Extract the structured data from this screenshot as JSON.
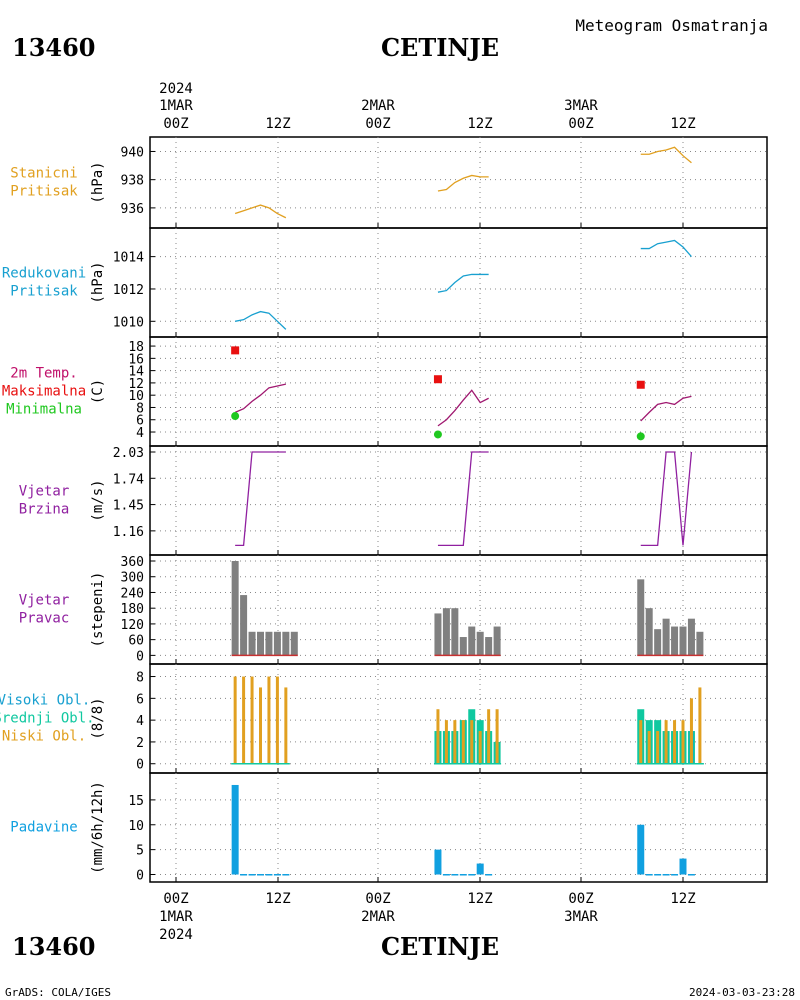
{
  "header": {
    "station_id": "13460",
    "station_name": "CETINJE",
    "product": "Meteogram Osmatranja"
  },
  "footer": {
    "station_id": "13460",
    "station_name": "CETINJE",
    "credit": "GrADS: COLA/IGES",
    "timestamp": "2024-03-03-23:28"
  },
  "time_axis": {
    "year": "2024",
    "days": [
      "1MAR",
      "2MAR",
      "3MAR"
    ],
    "ticks": [
      "00Z",
      "12Z",
      "00Z",
      "12Z",
      "00Z",
      "12Z"
    ]
  },
  "colors": {
    "stanicni": "#e1a020",
    "redukovani": "#18a0d0",
    "max": "#e81010",
    "min": "#20c820",
    "temp_line": "#a01870",
    "vjetar": "#9020a0",
    "bars_gray": "#808080",
    "visoki": "#18a0d0",
    "srednji": "#10c8a0",
    "niski": "#e1a020",
    "padavine": "#10a0e0"
  },
  "chart_data": [
    {
      "type": "line",
      "id": "stanicni",
      "labels": [
        "Stanicni",
        "Pritisak"
      ],
      "ylabel": "(hPa)",
      "yticks": [
        936,
        938,
        940
      ],
      "ylim": [
        935.0,
        940.6
      ],
      "series": [
        {
          "x": [
            7,
            8,
            9,
            10,
            11,
            12,
            13
          ],
          "y": [
            935.6,
            935.8,
            936.0,
            936.2,
            936.0,
            935.6,
            935.3
          ]
        },
        {
          "x": [
            31,
            32,
            33,
            34,
            35,
            36,
            37
          ],
          "y": [
            937.2,
            937.3,
            937.8,
            938.1,
            938.3,
            938.2,
            938.2
          ]
        },
        {
          "x": [
            55,
            56,
            57,
            58,
            59,
            60,
            61
          ],
          "y": [
            939.8,
            939.8,
            940.0,
            940.1,
            940.3,
            939.7,
            939.2
          ]
        }
      ]
    },
    {
      "type": "line",
      "id": "redukovani",
      "labels": [
        "Redukovani",
        "Pritisak"
      ],
      "ylabel": "(hPa)",
      "yticks": [
        1010,
        1012,
        1014
      ],
      "ylim": [
        1009.4,
        1015.4
      ],
      "series": [
        {
          "x": [
            7,
            8,
            9,
            10,
            11,
            12,
            13
          ],
          "y": [
            1010.0,
            1010.1,
            1010.4,
            1010.6,
            1010.5,
            1010.0,
            1009.5
          ]
        },
        {
          "x": [
            31,
            32,
            33,
            34,
            35,
            36,
            37
          ],
          "y": [
            1011.8,
            1011.9,
            1012.4,
            1012.8,
            1012.9,
            1012.9,
            1012.9
          ]
        },
        {
          "x": [
            55,
            56,
            57,
            58,
            59,
            60,
            61
          ],
          "y": [
            1014.5,
            1014.5,
            1014.8,
            1014.9,
            1015.0,
            1014.6,
            1014.0
          ]
        }
      ]
    },
    {
      "type": "line",
      "id": "temperatura",
      "labels": [
        "2m Temp.",
        "Maksimalna",
        "Minimalna"
      ],
      "ylabel": "(C)",
      "yticks": [
        4,
        6,
        8,
        10,
        12,
        14,
        16,
        18
      ],
      "ylim": [
        2.7,
        18.5
      ],
      "series": [
        {
          "x": [
            7,
            8,
            9,
            10,
            11,
            12,
            13
          ],
          "y": [
            7.2,
            7.8,
            9.0,
            10.0,
            11.2,
            11.5,
            11.8
          ]
        },
        {
          "x": [
            31,
            32,
            33,
            34,
            35,
            36,
            37
          ],
          "y": [
            5.0,
            6.0,
            7.5,
            9.2,
            10.8,
            8.8,
            9.5
          ]
        },
        {
          "x": [
            55,
            56,
            57,
            58,
            59,
            60,
            61
          ],
          "y": [
            5.8,
            7.2,
            8.5,
            8.8,
            8.5,
            9.5,
            9.8
          ]
        }
      ],
      "max": {
        "x": [
          7,
          31,
          55
        ],
        "y": [
          17.3,
          12.6,
          11.7
        ]
      },
      "min": {
        "x": [
          7,
          31,
          55
        ],
        "y": [
          6.6,
          3.6,
          3.3
        ]
      }
    },
    {
      "type": "line",
      "id": "vjetar_brzina",
      "labels": [
        "Vjetar",
        "Brzina"
      ],
      "ylabel": "(m/s)",
      "yticks": [
        "1.16",
        "1.45",
        "1.74",
        "2.03"
      ],
      "ytick_values": [
        1.16,
        1.45,
        1.74,
        2.03
      ],
      "ylim": [
        0.96,
        2.03
      ],
      "series": [
        {
          "x": [
            7,
            8,
            9,
            10,
            11,
            12,
            13
          ],
          "y": [
            1.0,
            1.0,
            2.03,
            2.03,
            2.03,
            2.03,
            2.03
          ]
        },
        {
          "x": [
            31,
            32,
            33,
            34,
            35,
            36,
            37
          ],
          "y": [
            1.0,
            1.0,
            1.0,
            1.0,
            2.03,
            2.03,
            2.03
          ]
        },
        {
          "x": [
            55,
            56,
            57,
            58,
            59,
            60,
            61
          ],
          "y": [
            1.0,
            1.0,
            1.0,
            2.03,
            2.03,
            1.0,
            2.03
          ]
        }
      ]
    },
    {
      "type": "bar",
      "id": "vjetar_pravac",
      "labels": [
        "Vjetar",
        "Pravac"
      ],
      "ylabel": "(stepeni)",
      "yticks": [
        0,
        60,
        120,
        180,
        240,
        300,
        360
      ],
      "ylim": [
        -10,
        360
      ],
      "series": [
        {
          "x": [
            7,
            8,
            9,
            10,
            11,
            12,
            13,
            14
          ],
          "y": [
            360,
            230,
            90,
            90,
            90,
            90,
            90,
            90
          ]
        },
        {
          "x": [
            31,
            32,
            33,
            34,
            35,
            36,
            37,
            38
          ],
          "y": [
            160,
            180,
            180,
            70,
            110,
            90,
            70,
            110
          ]
        },
        {
          "x": [
            55,
            56,
            57,
            58,
            59,
            60,
            61,
            62
          ],
          "y": [
            290,
            180,
            100,
            140,
            110,
            110,
            140,
            90
          ]
        }
      ]
    },
    {
      "type": "bar",
      "id": "oblacnost",
      "labels": [
        "Visoki Obl.",
        "Srednji Obl.",
        "Niski Obl."
      ],
      "ylabel": "(8/8)",
      "yticks": [
        0,
        2,
        4,
        6,
        8
      ],
      "ylim": [
        -0.3,
        8.6
      ],
      "x": [
        [
          7,
          8,
          9,
          10,
          11,
          12,
          13
        ],
        [
          31,
          32,
          33,
          34,
          35,
          36,
          37,
          38
        ],
        [
          55,
          56,
          57,
          58,
          59,
          60,
          61,
          62
        ]
      ],
      "visoki": [
        [
          0,
          0,
          0,
          0,
          0,
          0,
          0
        ],
        [
          0,
          0,
          0,
          0,
          0,
          0,
          0,
          0
        ],
        [
          0,
          0,
          0,
          0,
          0,
          0,
          3,
          0
        ]
      ],
      "srednji": [
        [
          0,
          0,
          0,
          0,
          0,
          0,
          0
        ],
        [
          3,
          3,
          3,
          4,
          5,
          4,
          3,
          2
        ],
        [
          5,
          4,
          4,
          3,
          3,
          3,
          3,
          0
        ]
      ],
      "niski": [
        [
          8,
          8,
          8,
          7,
          8,
          8,
          7
        ],
        [
          5,
          4,
          4,
          4,
          4,
          3,
          5,
          5
        ],
        [
          4,
          3,
          3,
          4,
          4,
          4,
          6,
          7
        ]
      ]
    },
    {
      "type": "bar",
      "id": "padavine",
      "labels": [
        "Padavine"
      ],
      "ylabel": "(mm/6h/12h)",
      "yticks": [
        0,
        5,
        10,
        15
      ],
      "ylim": [
        -0.3,
        19.2
      ],
      "series": [
        {
          "x": [
            7,
            8,
            9,
            10,
            11,
            12,
            13
          ],
          "y": [
            18,
            0.1,
            0.1,
            0.1,
            0.1,
            0.1,
            0.1
          ]
        },
        {
          "x": [
            31,
            32,
            33,
            34,
            35,
            36,
            37
          ],
          "y": [
            5,
            0.1,
            0.1,
            0.1,
            0.1,
            2.2,
            0.1
          ]
        },
        {
          "x": [
            55,
            56,
            57,
            58,
            59,
            60,
            61
          ],
          "y": [
            10,
            0.1,
            0.1,
            0.1,
            0.1,
            3.2,
            0.1
          ]
        }
      ]
    }
  ]
}
